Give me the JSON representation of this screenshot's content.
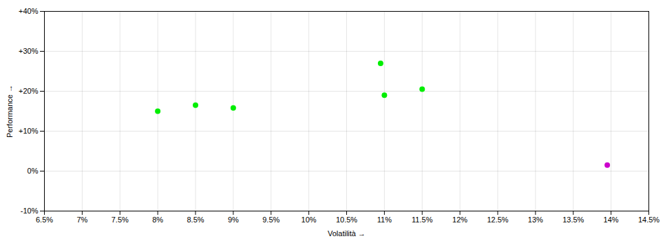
{
  "chart_data": {
    "type": "scatter",
    "xlabel": "Volatilità",
    "ylabel": "Performance",
    "series": [
      {
        "color": "#00ee00",
        "x": [
          8.0,
          8.5,
          9.0,
          11.0,
          10.95,
          11.5
        ],
        "values": [
          15.0,
          16.5,
          15.8,
          19.0,
          27.0,
          20.5
        ]
      },
      {
        "color": "#cc00cc",
        "x": [
          13.95
        ],
        "values": [
          1.5
        ]
      }
    ],
    "xlim": [
      6.5,
      14.5
    ],
    "ylim": [
      -10,
      40
    ],
    "xticks": [
      {
        "value": 6.5,
        "label": "6.5%"
      },
      {
        "value": 7.0,
        "label": "7%"
      },
      {
        "value": 7.5,
        "label": "7.5%"
      },
      {
        "value": 8.0,
        "label": "8%"
      },
      {
        "value": 8.5,
        "label": "8.5%"
      },
      {
        "value": 9.0,
        "label": "9%"
      },
      {
        "value": 9.5,
        "label": "9.5%"
      },
      {
        "value": 10.0,
        "label": "10%"
      },
      {
        "value": 10.5,
        "label": "10.5%"
      },
      {
        "value": 11.0,
        "label": "11%"
      },
      {
        "value": 11.5,
        "label": "11.5%"
      },
      {
        "value": 12.0,
        "label": "12%"
      },
      {
        "value": 12.5,
        "label": "12.5%"
      },
      {
        "value": 13.0,
        "label": "13%"
      },
      {
        "value": 13.5,
        "label": "13.5%"
      },
      {
        "value": 14.0,
        "label": "14%"
      },
      {
        "value": 14.5,
        "label": "14.5%"
      }
    ],
    "yticks": [
      {
        "value": -10,
        "label": "-10%"
      },
      {
        "value": 0,
        "label": "0%"
      },
      {
        "value": 10,
        "label": "+10%"
      },
      {
        "value": 20,
        "label": "+20%"
      },
      {
        "value": 30,
        "label": "+30%"
      },
      {
        "value": 40,
        "label": "+40%"
      }
    ],
    "grid": true
  }
}
